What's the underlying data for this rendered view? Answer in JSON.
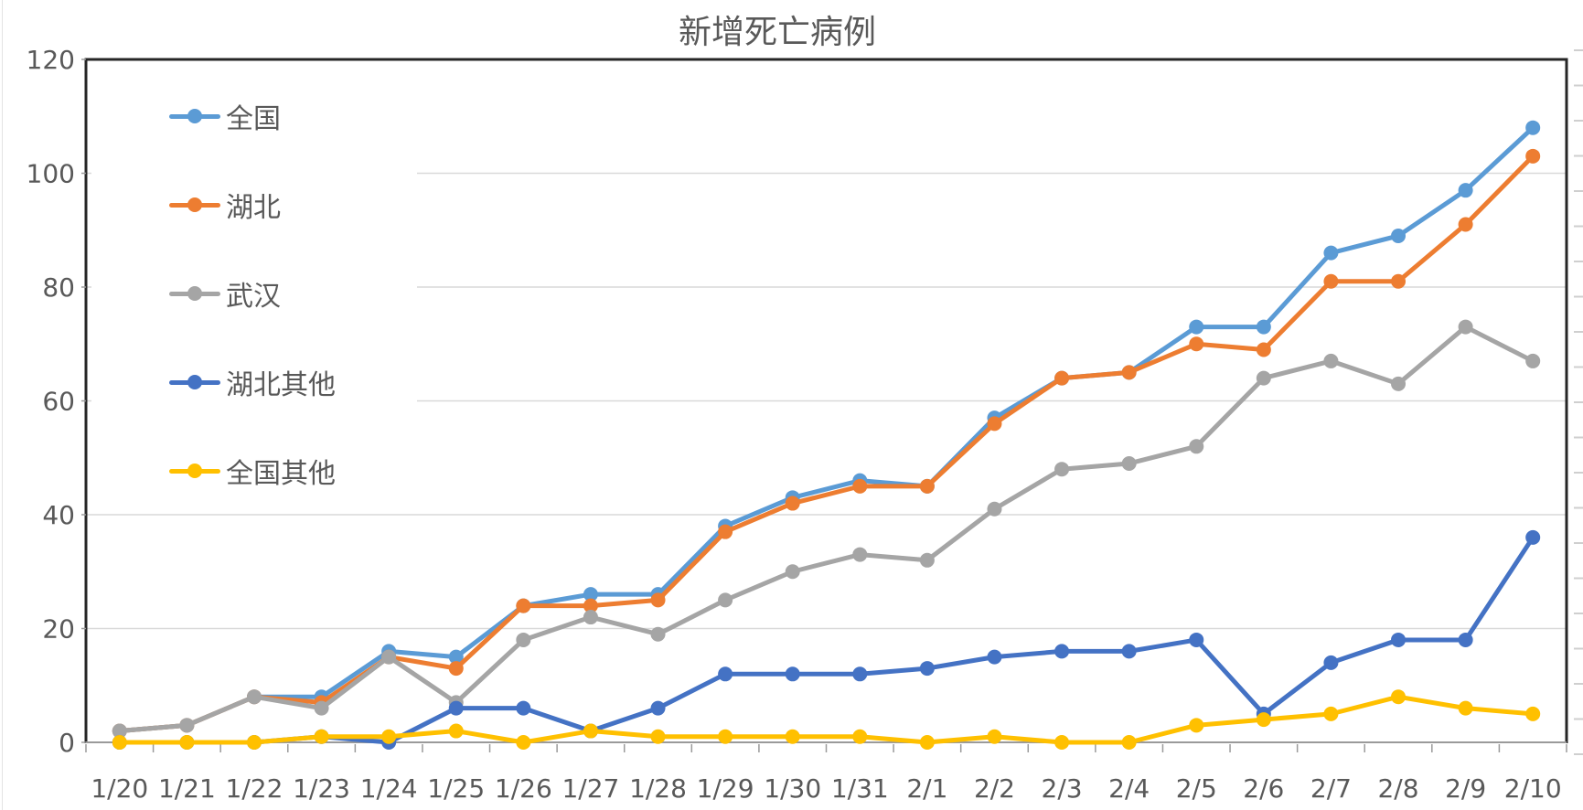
{
  "chart_data": {
    "type": "line",
    "title": "新增死亡病例",
    "categories": [
      "1/20",
      "1/21",
      "1/22",
      "1/23",
      "1/24",
      "1/25",
      "1/26",
      "1/27",
      "1/28",
      "1/29",
      "1/30",
      "1/31",
      "2/1",
      "2/2",
      "2/3",
      "2/4",
      "2/5",
      "2/6",
      "2/7",
      "2/8",
      "2/9",
      "2/10"
    ],
    "series": [
      {
        "id": "national",
        "name": "全国",
        "color": "#5B9BD5",
        "values": [
          2,
          3,
          8,
          8,
          16,
          15,
          24,
          26,
          26,
          38,
          43,
          46,
          45,
          57,
          64,
          65,
          73,
          73,
          86,
          89,
          97,
          108
        ]
      },
      {
        "id": "hubei",
        "name": "湖北",
        "color": "#ED7D31",
        "values": [
          2,
          3,
          8,
          7,
          15,
          13,
          24,
          24,
          25,
          37,
          42,
          45,
          45,
          56,
          64,
          65,
          70,
          69,
          81,
          81,
          91,
          103
        ]
      },
      {
        "id": "wuhan",
        "name": "武汉",
        "color": "#A5A5A5",
        "values": [
          2,
          3,
          8,
          6,
          15,
          7,
          18,
          22,
          19,
          25,
          30,
          33,
          32,
          41,
          48,
          49,
          52,
          64,
          67,
          63,
          73,
          67
        ]
      },
      {
        "id": "hubei-other",
        "name": "湖北其他",
        "color": "#4472C4",
        "values": [
          0,
          0,
          0,
          1,
          0,
          6,
          6,
          2,
          6,
          12,
          12,
          12,
          13,
          15,
          16,
          16,
          18,
          5,
          14,
          18,
          18,
          36
        ]
      },
      {
        "id": "national-other",
        "name": "全国其他",
        "color": "#FFC000",
        "values": [
          0,
          0,
          0,
          1,
          1,
          2,
          0,
          2,
          1,
          1,
          1,
          1,
          0,
          1,
          0,
          0,
          3,
          4,
          5,
          8,
          6,
          5
        ]
      }
    ],
    "y_axis": {
      "min": 0,
      "max": 120,
      "tick_interval": 20,
      "ticks": [
        120,
        100,
        80,
        60,
        40,
        20,
        0
      ]
    },
    "x_axis": {
      "label_count": 22
    },
    "legend_position": "inside-top-left",
    "grid": true
  },
  "theme": {
    "title_color": "#595959",
    "axis_text_color": "#595959",
    "gridline_color": "#D9D9D9",
    "plot_border_color": "#262626",
    "baseline_color": "#9A9A9A",
    "tick_color": "#9A9A9A",
    "edge_stub_color": "#CFCFCF",
    "background": "#FFFFFF"
  }
}
